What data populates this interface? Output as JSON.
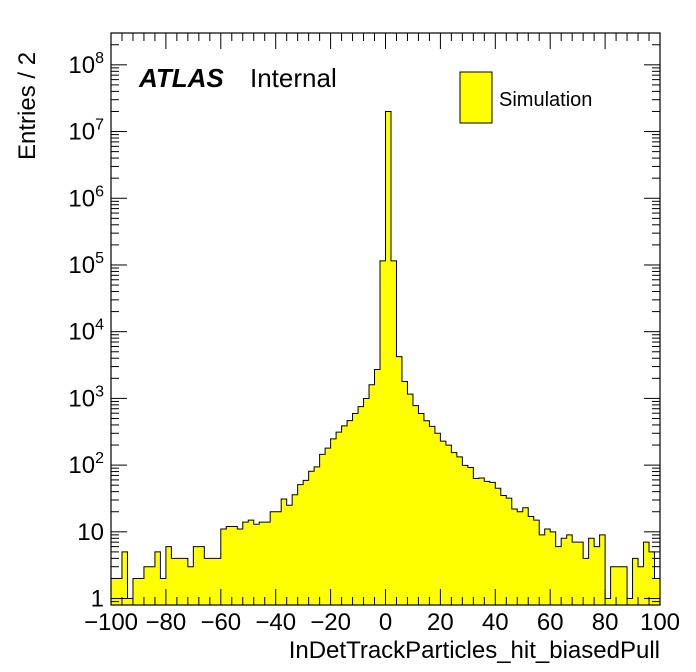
{
  "chart_data": {
    "type": "bar",
    "style": "histogram",
    "xlabel": "InDetTrackParticles_hit_biasedPull",
    "ylabel": "Entries / 2",
    "xlim": [
      -100,
      100
    ],
    "ylim": [
      0.8,
      300000000
    ],
    "log_y": true,
    "bin_width": 2,
    "x_ticks": [
      -100,
      -80,
      -60,
      -40,
      -20,
      0,
      20,
      40,
      60,
      80,
      100
    ],
    "x_tick_labels": [
      "−100",
      "−80",
      "−60",
      "−40",
      "−20",
      "0",
      "20",
      "40",
      "60",
      "80",
      "100"
    ],
    "y_ticks": [
      {
        "value": 1,
        "base": "1",
        "exp": ""
      },
      {
        "value": 10,
        "base": "10",
        "exp": ""
      },
      {
        "value": 100,
        "base": "10",
        "exp": "2"
      },
      {
        "value": 1000,
        "base": "10",
        "exp": "3"
      },
      {
        "value": 10000,
        "base": "10",
        "exp": "4"
      },
      {
        "value": 100000,
        "base": "10",
        "exp": "5"
      },
      {
        "value": 1000000,
        "base": "10",
        "exp": "6"
      },
      {
        "value": 10000000,
        "base": "10",
        "exp": "7"
      },
      {
        "value": 100000000,
        "base": "10",
        "exp": "8"
      }
    ],
    "fill_color": "#ffff00",
    "line_color": "#000000",
    "grid": false,
    "legend": {
      "position": "top-right",
      "entries": [
        "Simulation"
      ]
    },
    "label": {
      "experiment": "ATLAS",
      "status": "Internal"
    },
    "series": [
      {
        "name": "Simulation",
        "bin_low_edges": [
          -100,
          -98,
          -96,
          -94,
          -92,
          -90,
          -88,
          -86,
          -84,
          -82,
          -80,
          -78,
          -76,
          -74,
          -72,
          -70,
          -68,
          -66,
          -64,
          -62,
          -60,
          -58,
          -56,
          -54,
          -52,
          -50,
          -48,
          -46,
          -44,
          -42,
          -40,
          -38,
          -36,
          -34,
          -32,
          -30,
          -28,
          -26,
          -24,
          -22,
          -20,
          -18,
          -16,
          -14,
          -12,
          -10,
          -8,
          -6,
          -4,
          -2,
          0,
          2,
          4,
          6,
          8,
          10,
          12,
          14,
          16,
          18,
          20,
          22,
          24,
          26,
          28,
          30,
          32,
          34,
          36,
          38,
          40,
          42,
          44,
          46,
          48,
          50,
          52,
          54,
          56,
          58,
          60,
          62,
          64,
          66,
          68,
          70,
          72,
          74,
          76,
          78,
          80,
          82,
          84,
          86,
          88,
          90,
          92,
          94,
          96,
          98
        ],
        "values": [
          2,
          2,
          5,
          1,
          2,
          2,
          3,
          3,
          5,
          2,
          6,
          4,
          4,
          4,
          3,
          6,
          6,
          4,
          4,
          4,
          11,
          12,
          12,
          11,
          14,
          15,
          13,
          14,
          14,
          20,
          20,
          31,
          25,
          36,
          51,
          59,
          81,
          94,
          145,
          180,
          247,
          312,
          387,
          464,
          593,
          752,
          996,
          1600,
          2710,
          115000,
          20000000,
          115000,
          4220,
          1790,
          1160,
          778,
          593,
          463,
          380,
          300,
          229,
          199,
          154,
          133,
          99,
          92,
          63,
          64,
          57,
          55,
          45,
          35,
          32,
          22,
          20,
          23,
          17,
          15,
          9,
          11,
          10,
          6,
          8,
          9,
          7,
          7,
          4,
          8,
          6,
          9,
          1,
          3,
          3,
          3,
          1,
          4,
          3,
          7,
          5,
          2
        ]
      }
    ]
  }
}
